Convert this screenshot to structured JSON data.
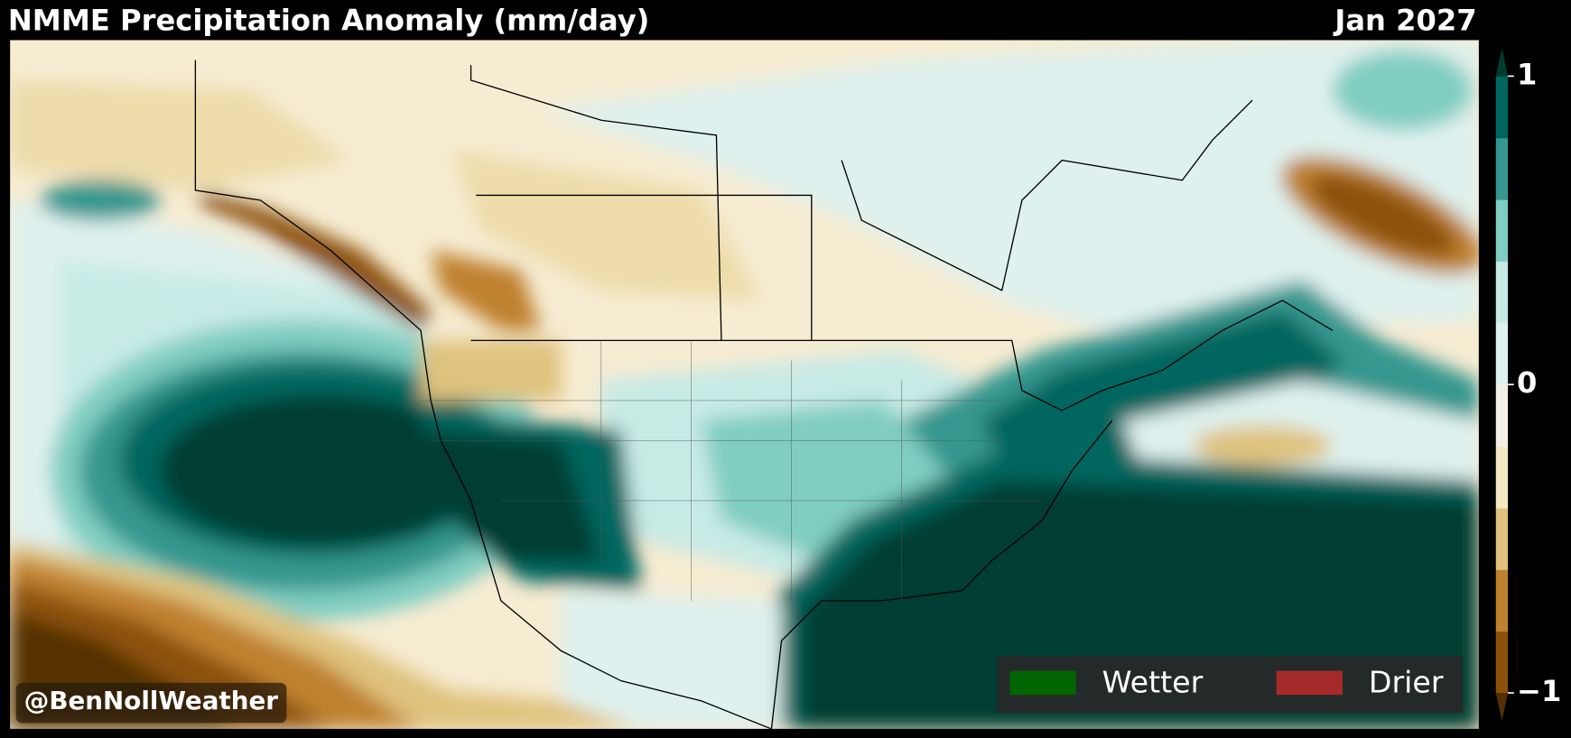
{
  "header": {
    "title": "NMME Precipitation Anomaly (mm/day)",
    "date": "Jan 2027"
  },
  "colorbar": {
    "lim": [
      -1,
      1
    ],
    "ticks": [
      {
        "value": -1,
        "label": "−1"
      },
      0,
      1
    ],
    "colors": [
      "#8c510a",
      "#bf812d",
      "#dfc27d",
      "#f6e8c3",
      "#f5f0e6",
      "#dff1ee",
      "#c7eae5",
      "#80cdc1",
      "#35978f",
      "#01665e"
    ],
    "under_color": "#543005",
    "over_color": "#003c30"
  },
  "legend": {
    "items": [
      {
        "label": "Wetter",
        "color": "#006400"
      },
      {
        "label": "Drier",
        "color": "#a52a2a"
      }
    ]
  },
  "watermark": "@BenNollWeather"
}
